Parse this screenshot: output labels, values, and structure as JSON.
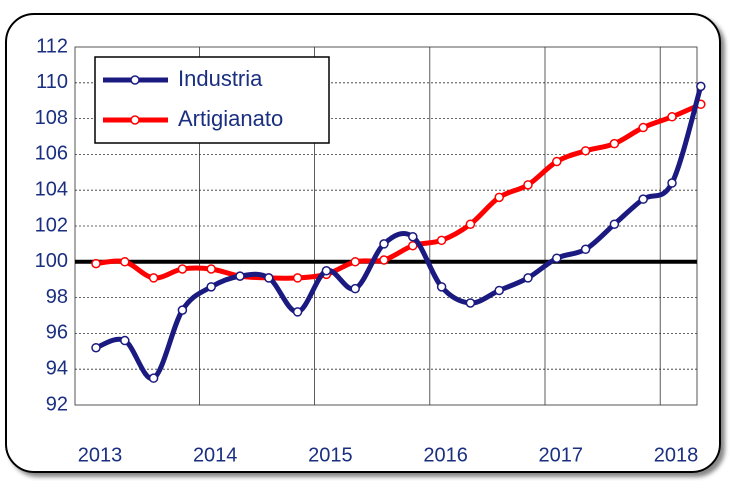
{
  "chart_data": {
    "type": "line",
    "categories": [
      "2013",
      null,
      null,
      null,
      "2014",
      null,
      null,
      null,
      "2015",
      null,
      null,
      null,
      "2016",
      null,
      null,
      null,
      "2017",
      null,
      null,
      null,
      "2018",
      null
    ],
    "series": [
      {
        "name": "Industria",
        "color": "#1a1a80",
        "values": [
          95.2,
          95.6,
          93.5,
          97.3,
          98.6,
          99.2,
          99.1,
          97.2,
          99.5,
          98.5,
          101.0,
          101.4,
          98.6,
          97.7,
          98.4,
          99.1,
          100.2,
          100.7,
          102.1,
          103.5,
          104.4,
          109.8
        ]
      },
      {
        "name": "Artigianato",
        "color": "#ff0000",
        "values": [
          99.9,
          100.0,
          99.1,
          99.6,
          99.6,
          99.2,
          99.1,
          99.1,
          99.3,
          100.0,
          100.1,
          100.9,
          101.2,
          102.1,
          103.6,
          104.3,
          105.6,
          106.2,
          106.6,
          107.5,
          108.1,
          108.8
        ]
      }
    ],
    "reference_line": 100,
    "ylim": [
      92,
      112
    ],
    "yticks": [
      92,
      94,
      96,
      98,
      100,
      102,
      104,
      106,
      108,
      110,
      112
    ],
    "grid": true,
    "legend": "upper-left"
  }
}
